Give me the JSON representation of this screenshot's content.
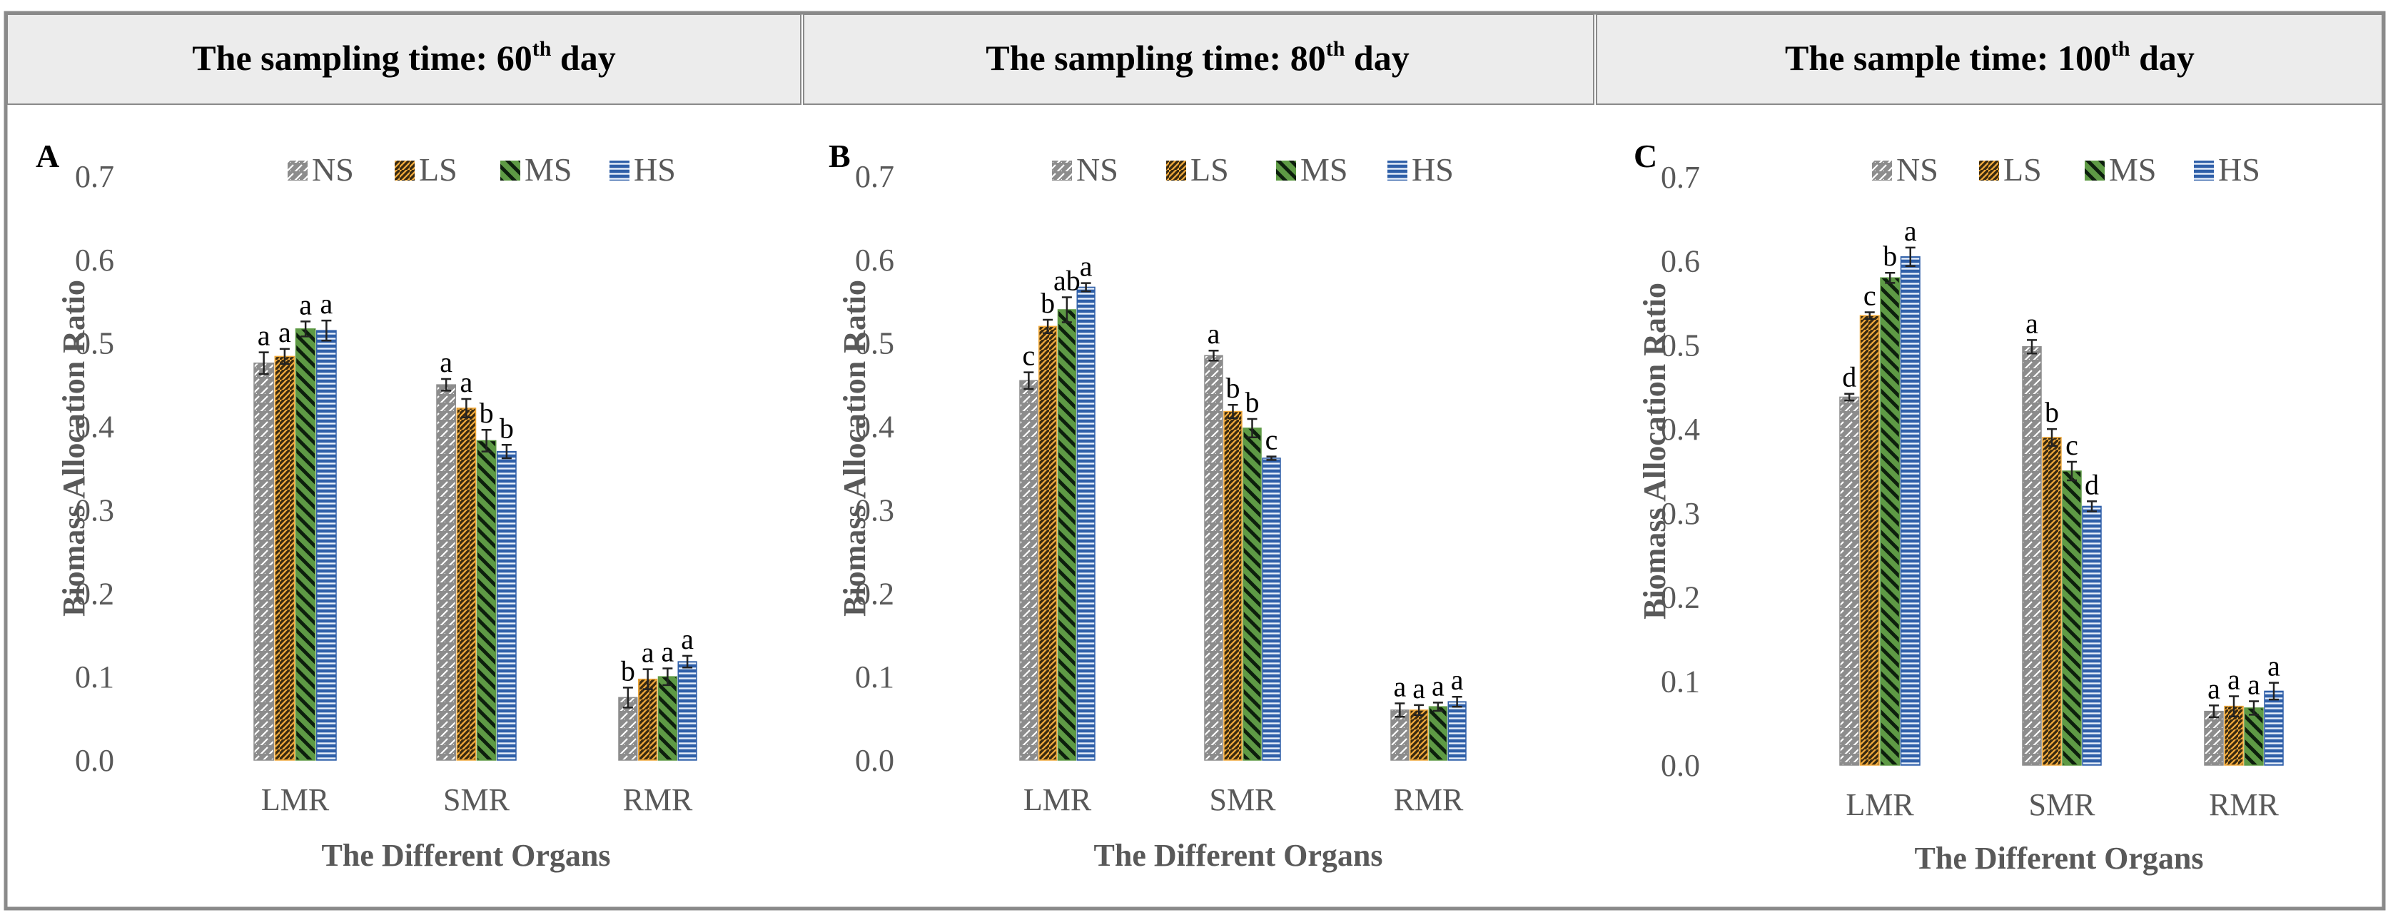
{
  "legend": [
    "NS",
    "LS",
    "MS",
    "HS"
  ],
  "colors": {
    "NS": "#8c8c8c",
    "LS": "#f0a93b",
    "MS": "#5e9a45",
    "HS": "#2f5fa8",
    "header_bg": "#ececec",
    "axis_text": "#595959",
    "frame": "#8a8a8a"
  },
  "chart_data": [
    {
      "type": "bar",
      "header": {
        "prefix": "The sampling time: ",
        "number": "60",
        "sup": "th",
        "suffix": " day"
      },
      "letter": "A",
      "categories": [
        "LMR",
        "SMR",
        "RMR"
      ],
      "series": [
        {
          "name": "NS",
          "values": [
            0.476,
            0.45,
            0.075
          ],
          "errors": [
            0.013,
            0.007,
            0.012
          ],
          "letters": [
            "a",
            "a",
            "b"
          ]
        },
        {
          "name": "LS",
          "values": [
            0.484,
            0.422,
            0.097
          ],
          "errors": [
            0.009,
            0.011,
            0.012
          ],
          "letters": [
            "a",
            "a",
            "a"
          ]
        },
        {
          "name": "MS",
          "values": [
            0.517,
            0.383,
            0.1
          ],
          "errors": [
            0.009,
            0.013,
            0.01
          ],
          "letters": [
            "a",
            "b",
            "a"
          ]
        },
        {
          "name": "HS",
          "values": [
            0.515,
            0.37,
            0.118
          ],
          "errors": [
            0.012,
            0.008,
            0.007
          ],
          "letters": [
            "a",
            "b",
            "a"
          ]
        }
      ],
      "ylabel": "Biomass Allocation Ratio",
      "xlabel": "The Different Organs",
      "ylim": [
        0,
        0.7
      ],
      "yticks": [
        "0.0",
        "0.1",
        "0.2",
        "0.3",
        "0.4",
        "0.5",
        "0.6",
        "0.7"
      ]
    },
    {
      "type": "bar",
      "header": {
        "prefix": "The sampling time: ",
        "number": "80",
        "sup": "th",
        "suffix": " day"
      },
      "letter": "B",
      "categories": [
        "LMR",
        "SMR",
        "RMR"
      ],
      "series": [
        {
          "name": "NS",
          "values": [
            0.455,
            0.485,
            0.06
          ],
          "errors": [
            0.01,
            0.006,
            0.008
          ],
          "letters": [
            "c",
            "a",
            "a"
          ]
        },
        {
          "name": "LS",
          "values": [
            0.52,
            0.418,
            0.06
          ],
          "errors": [
            0.008,
            0.008,
            0.006
          ],
          "letters": [
            "b",
            "b",
            "a"
          ]
        },
        {
          "name": "MS",
          "values": [
            0.54,
            0.398,
            0.064
          ],
          "errors": [
            0.015,
            0.011,
            0.005
          ],
          "letters": [
            "ab",
            "b",
            "a"
          ]
        },
        {
          "name": "HS",
          "values": [
            0.567,
            0.362,
            0.07
          ],
          "errors": [
            0.005,
            0.002,
            0.006
          ],
          "letters": [
            "a",
            "c",
            "a"
          ]
        }
      ],
      "ylabel": "Biomass Allocation Ratio",
      "xlabel": "The Different Organs",
      "ylim": [
        0,
        0.7
      ],
      "yticks": [
        "0.0",
        "0.1",
        "0.2",
        "0.3",
        "0.4",
        "0.5",
        "0.6",
        "0.7"
      ]
    },
    {
      "type": "bar",
      "header": {
        "prefix": "The sample time: ",
        "number": "100",
        "sup": "th",
        "suffix": " day"
      },
      "letter": "C",
      "categories": [
        "LMR",
        "SMR",
        "RMR"
      ],
      "series": [
        {
          "name": "NS",
          "values": [
            0.438,
            0.498,
            0.064
          ],
          "errors": [
            0.004,
            0.008,
            0.007
          ],
          "letters": [
            "d",
            "a",
            "a"
          ]
        },
        {
          "name": "LS",
          "values": [
            0.535,
            0.39,
            0.07
          ],
          "errors": [
            0.004,
            0.01,
            0.012
          ],
          "letters": [
            "c",
            "b",
            "a"
          ]
        },
        {
          "name": "MS",
          "values": [
            0.58,
            0.35,
            0.068
          ],
          "errors": [
            0.006,
            0.011,
            0.008
          ],
          "letters": [
            "b",
            "c",
            "a"
          ]
        },
        {
          "name": "HS",
          "values": [
            0.605,
            0.308,
            0.088
          ],
          "errors": [
            0.011,
            0.006,
            0.01
          ],
          "letters": [
            "a",
            "d",
            "a"
          ]
        }
      ],
      "ylabel": "Biomass Allocation Ratio",
      "xlabel": "The Different Organs",
      "ylim": [
        0,
        0.7
      ],
      "yticks": [
        "0.0",
        "0.1",
        "0.2",
        "0.3",
        "0.4",
        "0.5",
        "0.6",
        "0.7"
      ]
    }
  ]
}
